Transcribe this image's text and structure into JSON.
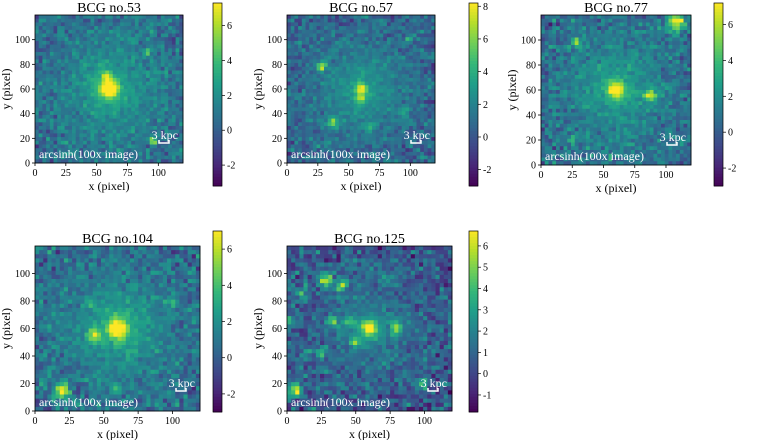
{
  "chart_data": [
    {
      "type": "heatmap",
      "title": "BCG no.53",
      "xlabel": "x (pixel)",
      "ylabel": "y (pixel)",
      "xticks": [
        "0",
        "25",
        "50",
        "75",
        "100"
      ],
      "yticks": [
        "0",
        "20",
        "40",
        "60",
        "80",
        "100"
      ],
      "xlim": [
        0,
        120
      ],
      "ylim": [
        0,
        120
      ],
      "colorbar": {
        "ticks": [
          "-2",
          "0",
          "2",
          "4",
          "6"
        ],
        "tick_values": [
          -2,
          0,
          2,
          4,
          6
        ],
        "min": -3.2,
        "max": 7.3
      },
      "annotation": "arcsinh(100x image)",
      "scale_label": "3 kpc",
      "sources": [
        {
          "x": 60,
          "y": 60,
          "peak": 6.5,
          "sigma": 5
        },
        {
          "x": 58,
          "y": 70,
          "peak": 3.5,
          "sigma": 3
        },
        {
          "x": 95,
          "y": 18,
          "peak": 5.5,
          "sigma": 2.2
        },
        {
          "x": 92,
          "y": 90,
          "peak": 2.0,
          "sigma": 2.5
        }
      ],
      "halo": {
        "x": 60,
        "y": 60,
        "amp": 3.8,
        "scale": 30
      }
    },
    {
      "type": "heatmap",
      "title": "BCG no.57",
      "xlabel": "x (pixel)",
      "ylabel": "y (pixel)",
      "xticks": [
        "0",
        "25",
        "50",
        "75",
        "100"
      ],
      "yticks": [
        "0",
        "20",
        "40",
        "60",
        "80",
        "100"
      ],
      "xlim": [
        0,
        120
      ],
      "ylim": [
        0,
        120
      ],
      "colorbar": {
        "ticks": [
          "-2",
          "0",
          "2",
          "4",
          "6",
          "8"
        ],
        "tick_values": [
          -2,
          0,
          2,
          4,
          6,
          8
        ],
        "min": -3.0,
        "max": 8.2
      },
      "annotation": "arcsinh(100x image)",
      "scale_label": "3 kpc",
      "sources": [
        {
          "x": 60,
          "y": 60,
          "peak": 5.5,
          "sigma": 3
        },
        {
          "x": 60,
          "y": 52,
          "peak": 4.5,
          "sigma": 2.5
        },
        {
          "x": 28,
          "y": 78,
          "peak": 6.5,
          "sigma": 2.5
        },
        {
          "x": 38,
          "y": 33,
          "peak": 4.5,
          "sigma": 3
        },
        {
          "x": 68,
          "y": 28,
          "peak": 3.5,
          "sigma": 2.5
        },
        {
          "x": 95,
          "y": 40,
          "peak": 3.0,
          "sigma": 2.5
        },
        {
          "x": 98,
          "y": 100,
          "peak": 2.5,
          "sigma": 2
        }
      ],
      "halo": {
        "x": 60,
        "y": 60,
        "amp": 3.5,
        "scale": 32
      }
    },
    {
      "type": "heatmap",
      "title": "BCG no.77",
      "xlabel": "x (pixel)",
      "ylabel": "y (pixel)",
      "xticks": [
        "0",
        "25",
        "50",
        "75",
        "100"
      ],
      "yticks": [
        "0",
        "20",
        "40",
        "60",
        "80",
        "100"
      ],
      "xlim": [
        0,
        120
      ],
      "ylim": [
        0,
        120
      ],
      "colorbar": {
        "ticks": [
          "-2",
          "0",
          "2",
          "4",
          "6"
        ],
        "tick_values": [
          -2,
          0,
          2,
          4,
          6
        ],
        "min": -3.0,
        "max": 7.2
      },
      "annotation": "arcsinh(100x image)",
      "scale_label": "3 kpc",
      "sources": [
        {
          "x": 60,
          "y": 60,
          "peak": 6.2,
          "sigma": 4
        },
        {
          "x": 88,
          "y": 55,
          "peak": 5.0,
          "sigma": 3.5
        },
        {
          "x": 28,
          "y": 98,
          "peak": 5.0,
          "sigma": 2.5
        },
        {
          "x": 108,
          "y": 115,
          "peak": 6.5,
          "sigma": 5
        },
        {
          "x": 25,
          "y": 20,
          "peak": 3.5,
          "sigma": 2
        },
        {
          "x": 55,
          "y": 5,
          "peak": 2.5,
          "sigma": 2
        }
      ],
      "halo": {
        "x": 60,
        "y": 60,
        "amp": 3.6,
        "scale": 32
      }
    },
    {
      "type": "heatmap",
      "title": "BCG no.104",
      "xlabel": "x (pixel)",
      "ylabel": "y (pixel)",
      "xticks": [
        "0",
        "25",
        "50",
        "75",
        "100"
      ],
      "yticks": [
        "0",
        "20",
        "40",
        "60",
        "80",
        "100"
      ],
      "xlim": [
        0,
        120
      ],
      "ylim": [
        0,
        120
      ],
      "colorbar": {
        "ticks": [
          "-2",
          "0",
          "2",
          "4",
          "6"
        ],
        "tick_values": [
          -2,
          0,
          2,
          4,
          6
        ],
        "min": -3.0,
        "max": 7.0
      },
      "annotation": "arcsinh(100x image)",
      "scale_label": "3 kpc",
      "sources": [
        {
          "x": 60,
          "y": 60,
          "peak": 6.5,
          "sigma": 4.5
        },
        {
          "x": 43,
          "y": 55,
          "peak": 5.0,
          "sigma": 3
        },
        {
          "x": 20,
          "y": 15,
          "peak": 6.0,
          "sigma": 3.5
        },
        {
          "x": 100,
          "y": 80,
          "peak": 3.5,
          "sigma": 2.5
        },
        {
          "x": 58,
          "y": 15,
          "peak": 3.0,
          "sigma": 2.5
        },
        {
          "x": 40,
          "y": 78,
          "peak": 2.5,
          "sigma": 2
        },
        {
          "x": 95,
          "y": 105,
          "peak": 2.0,
          "sigma": 2
        }
      ],
      "halo": {
        "x": 60,
        "y": 60,
        "amp": 3.6,
        "scale": 30
      }
    },
    {
      "type": "heatmap",
      "title": "BCG no.125",
      "xlabel": "x (pixel)",
      "ylabel": "y (pixel)",
      "xticks": [
        "0",
        "25",
        "50",
        "75",
        "100"
      ],
      "yticks": [
        "0",
        "20",
        "40",
        "60",
        "80",
        "100"
      ],
      "xlim": [
        0,
        120
      ],
      "ylim": [
        0,
        120
      ],
      "colorbar": {
        "ticks": [
          "-1",
          "0",
          "1",
          "2",
          "3",
          "4",
          "5",
          "6"
        ],
        "tick_values": [
          -1,
          0,
          1,
          2,
          3,
          4,
          5,
          6
        ],
        "min": -1.8,
        "max": 6.7
      },
      "annotation": "arcsinh(100x image)",
      "scale_label": "3 kpc",
      "sources": [
        {
          "x": 60,
          "y": 60,
          "peak": 5.5,
          "sigma": 4
        },
        {
          "x": 28,
          "y": 95,
          "peak": 5.0,
          "sigma": 3.5
        },
        {
          "x": 40,
          "y": 92,
          "peak": 4.5,
          "sigma": 3
        },
        {
          "x": 5,
          "y": 15,
          "peak": 6.0,
          "sigma": 3.5
        },
        {
          "x": 3,
          "y": 65,
          "peak": 4.0,
          "sigma": 3
        },
        {
          "x": 33,
          "y": 65,
          "peak": 4.0,
          "sigma": 3
        },
        {
          "x": 45,
          "y": 65,
          "peak": 3.5,
          "sigma": 2.5
        },
        {
          "x": 80,
          "y": 60,
          "peak": 4.0,
          "sigma": 3
        },
        {
          "x": 50,
          "y": 50,
          "peak": 3.5,
          "sigma": 2.5
        },
        {
          "x": 25,
          "y": 42,
          "peak": 3.5,
          "sigma": 2.5
        },
        {
          "x": 13,
          "y": 40,
          "peak": 3.0,
          "sigma": 2.5
        },
        {
          "x": 72,
          "y": 97,
          "peak": 3.0,
          "sigma": 2.5
        },
        {
          "x": 98,
          "y": 20,
          "peak": 3.5,
          "sigma": 2.5
        },
        {
          "x": 10,
          "y": 85,
          "peak": 3.0,
          "sigma": 2.5
        },
        {
          "x": 40,
          "y": 18,
          "peak": 2.5,
          "sigma": 2
        }
      ],
      "halo": {
        "x": 60,
        "y": 60,
        "amp": 2.4,
        "scale": 30
      }
    }
  ],
  "colormap": [
    "#440154",
    "#482878",
    "#3e4989",
    "#31688e",
    "#26828e",
    "#1f9e89",
    "#35b779",
    "#6ece58",
    "#b5de2b",
    "#fde725"
  ]
}
